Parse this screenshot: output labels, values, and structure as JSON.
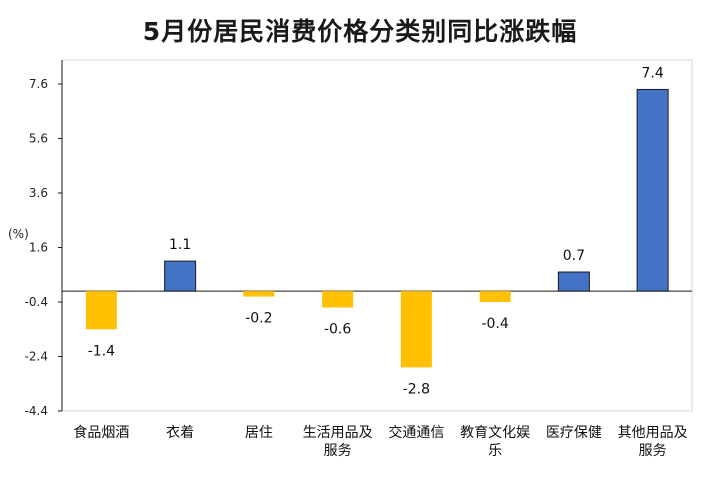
{
  "title": "5月份居民消费价格分类别同比涨跌幅",
  "colors": {
    "positive": "#4472C4",
    "negative": "#FFC000",
    "stroke": "#1a1a1a",
    "axis": "#1a1a1a"
  },
  "chart_data": {
    "type": "bar",
    "title": "5月份居民消费价格分类别同比涨跌幅",
    "ylabel": "(%)",
    "ylim": [
      -4.4,
      8.6
    ],
    "yticks": [
      7.6,
      5.6,
      3.6,
      1.6,
      -0.4,
      -2.4,
      -4.4
    ],
    "ytick_labels": [
      "7.6",
      "5.6",
      "3.6",
      "1.6",
      "-0.4",
      "-2.4",
      "-4.4"
    ],
    "categories": [
      [
        "食品烟酒"
      ],
      [
        "衣着"
      ],
      [
        "居住"
      ],
      [
        "生活用品及",
        "服务"
      ],
      [
        "交通通信"
      ],
      [
        "教育文化娱",
        "乐"
      ],
      [
        "医疗保健"
      ],
      [
        "其他用品及",
        "服务"
      ]
    ],
    "values": [
      -1.4,
      1.1,
      -0.2,
      -0.6,
      -2.8,
      -0.4,
      0.7,
      7.4
    ],
    "value_labels": [
      "-1.4",
      "1.1",
      "-0.2",
      "-0.6",
      "-2.8",
      "-0.4",
      "0.7",
      "7.4"
    ],
    "legend": false,
    "grid": false
  }
}
